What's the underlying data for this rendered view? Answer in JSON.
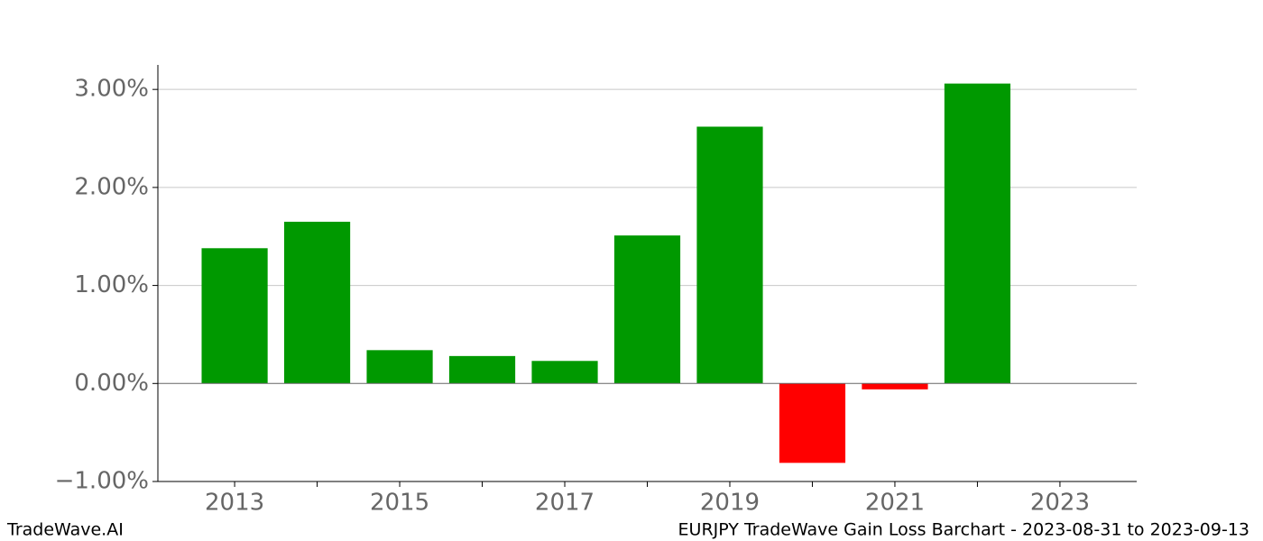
{
  "chart_data": {
    "type": "bar",
    "title": "EURJPY TradeWave Gain Loss Barchart - 2023-08-31 to 2023-09-13",
    "brand": "TradeWave.AI",
    "x": [
      2013,
      2014,
      2015,
      2016,
      2017,
      2018,
      2019,
      2020,
      2021,
      2022
    ],
    "values": [
      1.38,
      1.65,
      0.34,
      0.28,
      0.23,
      1.51,
      2.62,
      -0.81,
      -0.06,
      3.06
    ],
    "colors": {
      "positive": "#009900",
      "negative": "#ff0000"
    },
    "xlim": [
      2012.07,
      2023.93
    ],
    "xticks": [
      2013,
      2015,
      2017,
      2019,
      2021,
      2023
    ],
    "xminorticks": [
      2014,
      2016,
      2018,
      2020,
      2022
    ],
    "ylim": [
      -1.0,
      3.25
    ],
    "yticks": [
      {
        "value": -1,
        "label": "−1.00%"
      },
      {
        "value": 0,
        "label": "0.00%"
      },
      {
        "value": 1,
        "label": "1.00%"
      },
      {
        "value": 2,
        "label": "2.00%"
      },
      {
        "value": 3,
        "label": "3.00%"
      }
    ],
    "grid": true
  }
}
